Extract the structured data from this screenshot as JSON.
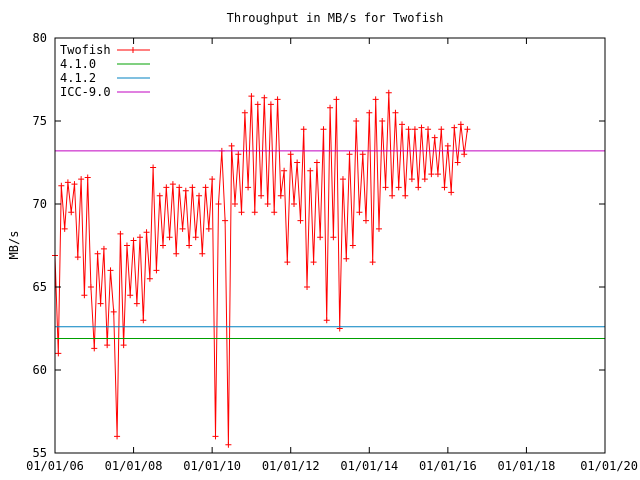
{
  "chart_data": {
    "type": "line",
    "title": "Throughput in MB/s for Twofish",
    "xlabel": "",
    "ylabel": "MB/s",
    "xlim": [
      "2006-01-01",
      "2020-01-01"
    ],
    "ylim": [
      55,
      80
    ],
    "x_ticks": [
      "01/01/06",
      "01/01/08",
      "01/01/10",
      "01/01/12",
      "01/01/14",
      "01/01/16",
      "01/01/18",
      "01/01/20"
    ],
    "y_ticks": [
      "55",
      "60",
      "65",
      "70",
      "75",
      "80"
    ],
    "grid": false,
    "legend_position": "top-left",
    "series": [
      {
        "name": "Twofish",
        "color": "#ff0000",
        "marker": "plus",
        "points": [
          [
            "2006-01-01",
            66.9
          ],
          [
            "2006-02-01",
            61.0
          ],
          [
            "2006-03-01",
            71.1
          ],
          [
            "2006-04-01",
            68.5
          ],
          [
            "2006-05-01",
            71.3
          ],
          [
            "2006-06-01",
            69.5
          ],
          [
            "2006-07-01",
            71.2
          ],
          [
            "2006-08-01",
            66.8
          ],
          [
            "2006-09-01",
            71.5
          ],
          [
            "2006-10-01",
            64.5
          ],
          [
            "2006-11-01",
            71.6
          ],
          [
            "2006-12-01",
            65.0
          ],
          [
            "2007-01-01",
            61.3
          ],
          [
            "2007-02-01",
            67.0
          ],
          [
            "2007-03-01",
            64.0
          ],
          [
            "2007-04-01",
            67.3
          ],
          [
            "2007-05-01",
            61.5
          ],
          [
            "2007-06-01",
            66.0
          ],
          [
            "2007-07-01",
            63.5
          ],
          [
            "2007-08-01",
            56.0
          ],
          [
            "2007-09-01",
            68.2
          ],
          [
            "2007-10-01",
            61.5
          ],
          [
            "2007-11-01",
            67.5
          ],
          [
            "2007-12-01",
            64.5
          ],
          [
            "2008-01-01",
            67.8
          ],
          [
            "2008-02-01",
            64.0
          ],
          [
            "2008-03-01",
            68.0
          ],
          [
            "2008-04-01",
            63.0
          ],
          [
            "2008-05-01",
            68.3
          ],
          [
            "2008-06-01",
            65.5
          ],
          [
            "2008-07-01",
            72.2
          ],
          [
            "2008-08-01",
            66.0
          ],
          [
            "2008-09-01",
            70.5
          ],
          [
            "2008-10-01",
            67.5
          ],
          [
            "2008-11-01",
            71.0
          ],
          [
            "2008-12-01",
            68.0
          ],
          [
            "2009-01-01",
            71.2
          ],
          [
            "2009-02-01",
            67.0
          ],
          [
            "2009-03-01",
            71.0
          ],
          [
            "2009-04-01",
            68.5
          ],
          [
            "2009-05-01",
            70.8
          ],
          [
            "2009-06-01",
            67.5
          ],
          [
            "2009-07-01",
            71.0
          ],
          [
            "2009-08-01",
            68.0
          ],
          [
            "2009-09-01",
            70.5
          ],
          [
            "2009-10-01",
            67.0
          ],
          [
            "2009-11-01",
            71.0
          ],
          [
            "2009-12-01",
            68.5
          ],
          [
            "2010-01-01",
            71.5
          ],
          [
            "2010-02-01",
            56.0
          ],
          [
            "2010-03-01",
            70.0
          ],
          [
            "2010-04-01",
            73.2
          ],
          [
            "2010-05-01",
            69.0
          ],
          [
            "2010-06-01",
            55.5
          ],
          [
            "2010-07-01",
            73.5
          ],
          [
            "2010-08-01",
            70.0
          ],
          [
            "2010-09-01",
            73.0
          ],
          [
            "2010-10-01",
            69.5
          ],
          [
            "2010-11-01",
            75.5
          ],
          [
            "2010-12-01",
            71.0
          ],
          [
            "2011-01-01",
            76.5
          ],
          [
            "2011-02-01",
            69.5
          ],
          [
            "2011-03-01",
            76.0
          ],
          [
            "2011-04-01",
            70.5
          ],
          [
            "2011-05-01",
            76.4
          ],
          [
            "2011-06-01",
            70.0
          ],
          [
            "2011-07-01",
            76.0
          ],
          [
            "2011-08-01",
            69.5
          ],
          [
            "2011-09-01",
            76.3
          ],
          [
            "2011-10-01",
            70.5
          ],
          [
            "2011-11-01",
            72.0
          ],
          [
            "2011-12-01",
            66.5
          ],
          [
            "2012-01-01",
            73.0
          ],
          [
            "2012-02-01",
            70.0
          ],
          [
            "2012-03-01",
            72.5
          ],
          [
            "2012-04-01",
            69.0
          ],
          [
            "2012-05-01",
            74.5
          ],
          [
            "2012-06-01",
            65.0
          ],
          [
            "2012-07-01",
            72.0
          ],
          [
            "2012-08-01",
            66.5
          ],
          [
            "2012-09-01",
            72.5
          ],
          [
            "2012-10-01",
            68.0
          ],
          [
            "2012-11-01",
            74.5
          ],
          [
            "2012-12-01",
            63.0
          ],
          [
            "2013-01-01",
            75.8
          ],
          [
            "2013-02-01",
            68.0
          ],
          [
            "2013-03-01",
            76.3
          ],
          [
            "2013-04-01",
            62.5
          ],
          [
            "2013-05-01",
            71.5
          ],
          [
            "2013-06-01",
            66.7
          ],
          [
            "2013-07-01",
            73.0
          ],
          [
            "2013-08-01",
            67.5
          ],
          [
            "2013-09-01",
            75.0
          ],
          [
            "2013-10-01",
            69.5
          ],
          [
            "2013-11-01",
            73.0
          ],
          [
            "2013-12-01",
            69.0
          ],
          [
            "2014-01-01",
            75.5
          ],
          [
            "2014-02-01",
            66.5
          ],
          [
            "2014-03-01",
            76.3
          ],
          [
            "2014-04-01",
            68.5
          ],
          [
            "2014-05-01",
            75.0
          ],
          [
            "2014-06-01",
            71.0
          ],
          [
            "2014-07-01",
            76.7
          ],
          [
            "2014-08-01",
            70.5
          ],
          [
            "2014-09-01",
            75.5
          ],
          [
            "2014-10-01",
            71.0
          ],
          [
            "2014-11-01",
            74.8
          ],
          [
            "2014-12-01",
            70.5
          ],
          [
            "2015-01-01",
            74.5
          ],
          [
            "2015-02-01",
            71.5
          ],
          [
            "2015-03-01",
            74.5
          ],
          [
            "2015-04-01",
            71.0
          ],
          [
            "2015-05-01",
            74.6
          ],
          [
            "2015-06-01",
            71.5
          ],
          [
            "2015-07-01",
            74.5
          ],
          [
            "2015-08-01",
            71.8
          ],
          [
            "2015-09-01",
            74.0
          ],
          [
            "2015-10-01",
            71.8
          ],
          [
            "2015-11-01",
            74.5
          ],
          [
            "2015-12-01",
            71.0
          ],
          [
            "2016-01-01",
            73.5
          ],
          [
            "2016-02-01",
            70.7
          ],
          [
            "2016-03-01",
            74.6
          ],
          [
            "2016-04-01",
            72.5
          ],
          [
            "2016-05-01",
            74.8
          ],
          [
            "2016-06-01",
            73.0
          ],
          [
            "2016-07-01",
            74.5
          ]
        ]
      },
      {
        "name": "4.1.0",
        "color": "#00a000",
        "marker": "none",
        "points": [
          [
            "2006-01-01",
            61.9
          ],
          [
            "2020-01-01",
            61.9
          ]
        ]
      },
      {
        "name": "4.1.2",
        "color": "#0080c0",
        "marker": "none",
        "points": [
          [
            "2006-01-01",
            62.6
          ],
          [
            "2020-01-01",
            62.6
          ]
        ]
      },
      {
        "name": "ICC-9.0",
        "color": "#c000c0",
        "marker": "none",
        "points": [
          [
            "2006-01-01",
            73.2
          ],
          [
            "2020-01-01",
            73.2
          ]
        ]
      }
    ]
  }
}
